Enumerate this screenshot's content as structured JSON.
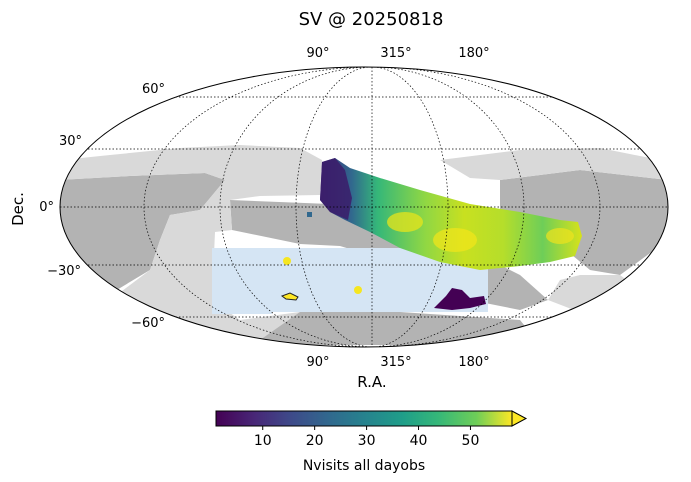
{
  "chart_data": {
    "type": "heatmap",
    "title": "SV @ 20250818",
    "projection": "mollweide",
    "xlabel": "R.A.",
    "ylabel": "Dec.",
    "ra_tick_labels": [
      "90°",
      "315°",
      "180°"
    ],
    "ra_tick_values": [
      90,
      315,
      180
    ],
    "ra_center": 315,
    "dec_tick_labels": [
      "60°",
      "30°",
      "0°",
      "−30°",
      "−60°"
    ],
    "dec_tick_values": [
      60,
      30,
      0,
      -30,
      -60
    ],
    "grid": true,
    "colorbar": {
      "label": "Nvisits all dayobs",
      "tick_labels": [
        "10",
        "20",
        "30",
        "40",
        "50"
      ],
      "tick_values": [
        10,
        20,
        30,
        40,
        50
      ],
      "range": [
        1,
        58
      ],
      "extend": "max",
      "colormap": "viridis"
    },
    "footprint_colors": {
      "dark_gray": "#b3b3b3",
      "light_gray": "#d9d9d9",
      "light_blue": "#d5e5f4"
    }
  }
}
